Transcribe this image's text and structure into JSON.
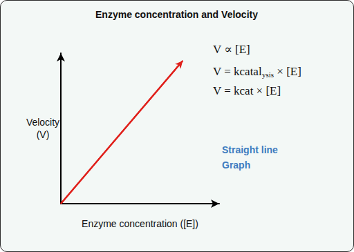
{
  "chart_data": {
    "type": "line",
    "title": "Enzyme concentration and Velocity",
    "x_label": "Enzyme concentration ([E])",
    "y_label": "Velocity\n(V)",
    "x": [
      0,
      0.77
    ],
    "values": [
      0,
      0.95
    ],
    "color": "#e0201b",
    "xlim": [
      0,
      1
    ],
    "ylim": [
      0,
      1
    ],
    "grid": false,
    "tick_labels": false,
    "line_style": "arrow",
    "formulas": [
      [
        "V ∝ [E]"
      ],
      [
        "V = kcatal",
        {
          "sub": "ysis"
        },
        " × [E]"
      ],
      [
        "V = kcat × [E]"
      ]
    ],
    "annotation": "Straight line\nGraph"
  }
}
